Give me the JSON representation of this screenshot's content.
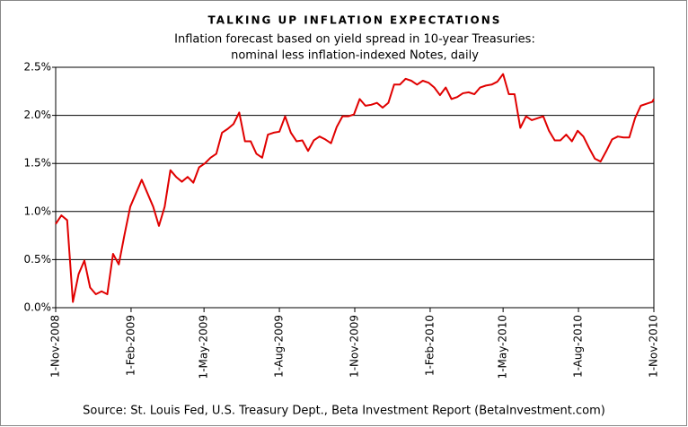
{
  "chart_data": {
    "type": "line",
    "title": "TALKING UP INFLATION EXPECTATIONS",
    "subtitle": [
      "Inflation forecast based on yield spread in 10-year Treasuries:",
      "nominal less inflation-indexed Notes, daily"
    ],
    "source": "Source: St. Louis Fed, U.S. Treasury Dept., Beta Investment Report (BetaInvestment.com)",
    "x": [
      "2008-11-01",
      "2008-11-08",
      "2008-11-15",
      "2008-11-22",
      "2008-11-29",
      "2008-12-06",
      "2008-12-13",
      "2008-12-20",
      "2008-12-27",
      "2009-01-03",
      "2009-01-10",
      "2009-01-17",
      "2009-01-24",
      "2009-01-31",
      "2009-02-07",
      "2009-02-14",
      "2009-02-21",
      "2009-02-28",
      "2009-03-07",
      "2009-03-14",
      "2009-03-21",
      "2009-03-28",
      "2009-04-04",
      "2009-04-11",
      "2009-04-18",
      "2009-04-25",
      "2009-05-02",
      "2009-05-09",
      "2009-05-16",
      "2009-05-23",
      "2009-05-30",
      "2009-06-06",
      "2009-06-13",
      "2009-06-20",
      "2009-06-27",
      "2009-07-04",
      "2009-07-11",
      "2009-07-18",
      "2009-07-25",
      "2009-08-01",
      "2009-08-08",
      "2009-08-15",
      "2009-08-22",
      "2009-08-29",
      "2009-09-05",
      "2009-09-12",
      "2009-09-19",
      "2009-09-26",
      "2009-10-03",
      "2009-10-10",
      "2009-10-17",
      "2009-10-24",
      "2009-10-31",
      "2009-11-07",
      "2009-11-14",
      "2009-11-21",
      "2009-11-28",
      "2009-12-05",
      "2009-12-12",
      "2009-12-19",
      "2009-12-26",
      "2010-01-02",
      "2010-01-09",
      "2010-01-16",
      "2010-01-23",
      "2010-01-30",
      "2010-02-06",
      "2010-02-13",
      "2010-02-20",
      "2010-02-27",
      "2010-03-06",
      "2010-03-13",
      "2010-03-20",
      "2010-03-27",
      "2010-04-03",
      "2010-04-10",
      "2010-04-17",
      "2010-04-24",
      "2010-05-01",
      "2010-05-08",
      "2010-05-15",
      "2010-05-22",
      "2010-05-29",
      "2010-06-05",
      "2010-06-12",
      "2010-06-19",
      "2010-06-26",
      "2010-07-03",
      "2010-07-10",
      "2010-07-17",
      "2010-07-24",
      "2010-07-31",
      "2010-08-07",
      "2010-08-14",
      "2010-08-21",
      "2010-08-28",
      "2010-09-04",
      "2010-09-11",
      "2010-09-18",
      "2010-09-25",
      "2010-10-02",
      "2010-10-09",
      "2010-10-16",
      "2010-10-23",
      "2010-10-30",
      "2010-11-01"
    ],
    "series": [
      {
        "name": "Inflation forecast",
        "color": "#e00000",
        "values": [
          0.87,
          0.96,
          0.91,
          0.06,
          0.35,
          0.49,
          0.21,
          0.14,
          0.17,
          0.14,
          0.56,
          0.45,
          0.76,
          1.05,
          1.19,
          1.33,
          1.19,
          1.05,
          0.85,
          1.05,
          1.43,
          1.36,
          1.31,
          1.36,
          1.3,
          1.46,
          1.5,
          1.56,
          1.6,
          1.82,
          1.86,
          1.91,
          2.03,
          1.73,
          1.73,
          1.6,
          1.56,
          1.8,
          1.82,
          1.83,
          1.99,
          1.82,
          1.73,
          1.74,
          1.63,
          1.74,
          1.78,
          1.75,
          1.71,
          1.88,
          1.99,
          1.99,
          2.01,
          2.17,
          2.1,
          2.11,
          2.13,
          2.08,
          2.13,
          2.32,
          2.32,
          2.38,
          2.36,
          2.32,
          2.36,
          2.34,
          2.29,
          2.21,
          2.29,
          2.17,
          2.19,
          2.23,
          2.24,
          2.22,
          2.29,
          2.31,
          2.32,
          2.35,
          2.43,
          2.22,
          2.22,
          1.87,
          1.99,
          1.95,
          1.97,
          1.99,
          1.84,
          1.74,
          1.74,
          1.8,
          1.73,
          1.84,
          1.78,
          1.66,
          1.55,
          1.52,
          1.63,
          1.75,
          1.78,
          1.77,
          1.77,
          1.97,
          2.1,
          2.12,
          2.14,
          2.17
        ]
      }
    ],
    "xlim": [
      "2008-11-01",
      "2010-11-01"
    ],
    "xticks": [
      {
        "value": "2008-11-01",
        "label": "1-Nov-2008"
      },
      {
        "value": "2009-02-01",
        "label": "1-Feb-2009"
      },
      {
        "value": "2009-05-01",
        "label": "1-May-2009"
      },
      {
        "value": "2009-08-01",
        "label": "1-Aug-2009"
      },
      {
        "value": "2009-11-01",
        "label": "1-Nov-2009"
      },
      {
        "value": "2010-02-01",
        "label": "1-Feb-2010"
      },
      {
        "value": "2010-05-01",
        "label": "1-May-2010"
      },
      {
        "value": "2010-08-01",
        "label": "1-Aug-2010"
      },
      {
        "value": "2010-11-01",
        "label": "1-Nov-2010"
      }
    ],
    "ylim": [
      0,
      2.5
    ],
    "yticks": [
      {
        "value": 0,
        "label": "0.0%"
      },
      {
        "value": 0.5,
        "label": "0.5%"
      },
      {
        "value": 1,
        "label": "1.0%"
      },
      {
        "value": 1.5,
        "label": "1.5%"
      },
      {
        "value": 2,
        "label": "2.0%"
      },
      {
        "value": 2.5,
        "label": "2.5%"
      }
    ],
    "grid": true
  }
}
